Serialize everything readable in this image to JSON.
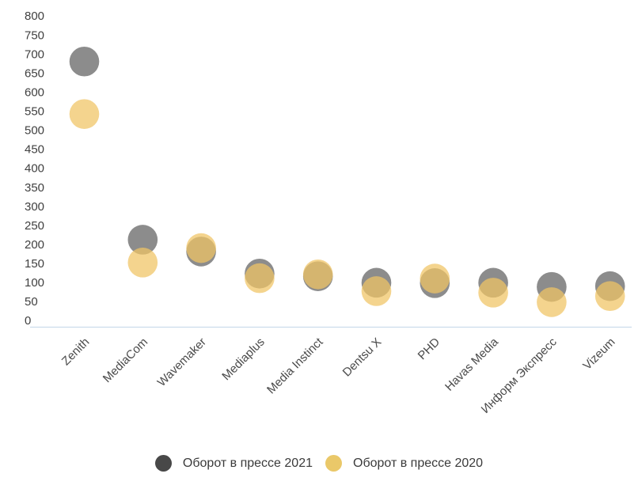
{
  "chart_data": {
    "type": "scatter",
    "subtype": "bubble-dot-plot",
    "title": "",
    "xlabel": "",
    "ylabel": "",
    "categories": [
      "Zenith",
      "MediaCom",
      "Wavemaker",
      "Mediaplus",
      "Media Instinct",
      "Dentsu X",
      "PHD",
      "Havas Media",
      "Информ Экспресс",
      "Vizeum"
    ],
    "series": [
      {
        "name": "Оборот в прессе 2021",
        "bubble_color": "rgba(95,95,95,0.72)",
        "legend_color": "#484848",
        "values": [
          680,
          212,
          181,
          123,
          116,
          99,
          98,
          99,
          88,
          90
        ]
      },
      {
        "name": "Оборот в прессе 2020",
        "bubble_color": "rgba(240,196,100,0.73)",
        "legend_color": "#eac869",
        "values": [
          542,
          152,
          190,
          111,
          121,
          77,
          110,
          73,
          48,
          64
        ]
      }
    ],
    "ylim": [
      0,
      800
    ],
    "yticks": [
      800,
      750,
      700,
      650,
      600,
      550,
      500,
      450,
      400,
      350,
      300,
      250,
      200,
      150,
      100,
      50,
      0
    ],
    "grid": false,
    "legend_position": "bottom",
    "colors": {
      "axis_line": "#ccdcec",
      "tick_label": "#3f3f3f",
      "category_label": "#4a4a4a",
      "legend_text": "#3a3a3a",
      "background": "#ffffff"
    }
  }
}
